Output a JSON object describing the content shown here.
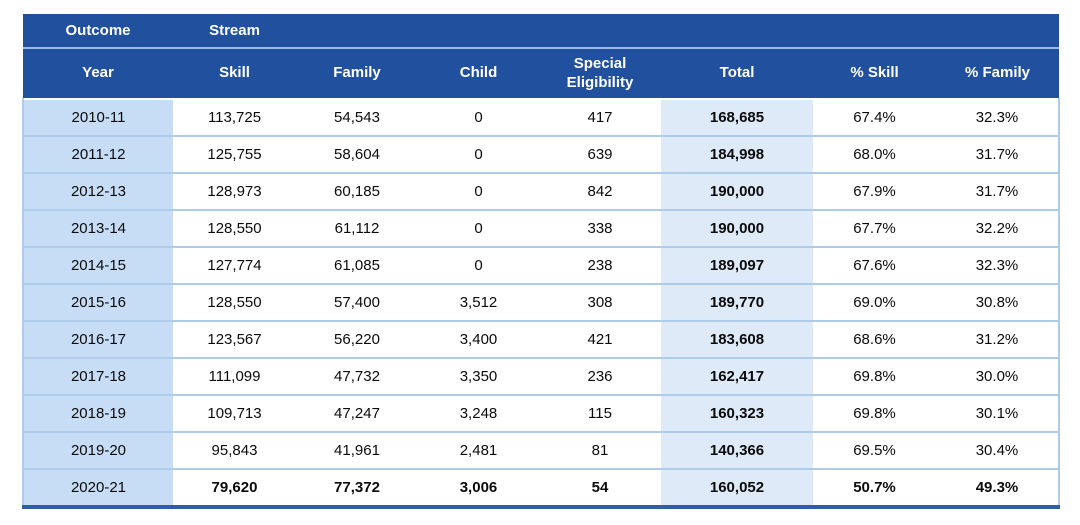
{
  "colors": {
    "header_bg": "#21519E",
    "header_divider": "#9CB9E2",
    "year_column_bg": "#C7DCF5",
    "total_column_bg": "#DEEAF7",
    "row_border": "#AECBEA",
    "bottom_border": "#2E5EA6",
    "header_text": "#FFFFFF",
    "cell_text": "#0B0B0B"
  },
  "table": {
    "group_header": {
      "outcome": "Outcome",
      "stream": "Stream"
    },
    "columns": [
      {
        "label": "Year"
      },
      {
        "label": "Skill"
      },
      {
        "label": "Family"
      },
      {
        "label": "Child"
      },
      {
        "label": "Special\nEligibility"
      },
      {
        "label": "Total"
      },
      {
        "label": "% Skill"
      },
      {
        "label": "% Family"
      }
    ],
    "rows": [
      {
        "year": "2010-11",
        "values": [
          "113,725",
          "54,543",
          "0",
          "417",
          "168,685",
          "67.4%",
          "32.3%"
        ],
        "bold": false
      },
      {
        "year": "2011-12",
        "values": [
          "125,755",
          "58,604",
          "0",
          "639",
          "184,998",
          "68.0%",
          "31.7%"
        ],
        "bold": false
      },
      {
        "year": "2012-13",
        "values": [
          "128,973",
          "60,185",
          "0",
          "842",
          "190,000",
          "67.9%",
          "31.7%"
        ],
        "bold": false
      },
      {
        "year": "2013-14",
        "values": [
          "128,550",
          "61,112",
          "0",
          "338",
          "190,000",
          "67.7%",
          "32.2%"
        ],
        "bold": false
      },
      {
        "year": "2014-15",
        "values": [
          "127,774",
          "61,085",
          "0",
          "238",
          "189,097",
          "67.6%",
          "32.3%"
        ],
        "bold": false
      },
      {
        "year": "2015-16",
        "values": [
          "128,550",
          "57,400",
          "3,512",
          "308",
          "189,770",
          "69.0%",
          "30.8%"
        ],
        "bold": false
      },
      {
        "year": "2016-17",
        "values": [
          "123,567",
          "56,220",
          "3,400",
          "421",
          "183,608",
          "68.6%",
          "31.2%"
        ],
        "bold": false
      },
      {
        "year": "2017-18",
        "values": [
          "111,099",
          "47,732",
          "3,350",
          "236",
          "162,417",
          "69.8%",
          "30.0%"
        ],
        "bold": false
      },
      {
        "year": "2018-19",
        "values": [
          "109,713",
          "47,247",
          "3,248",
          "115",
          "160,323",
          "69.8%",
          "30.1%"
        ],
        "bold": false
      },
      {
        "year": "2019-20",
        "values": [
          "95,843",
          "41,961",
          "2,481",
          "81",
          "140,366",
          "69.5%",
          "30.4%"
        ],
        "bold": false
      },
      {
        "year": "2020-21",
        "values": [
          "79,620",
          "77,372",
          "3,006",
          "54",
          "160,052",
          "50.7%",
          "49.3%"
        ],
        "bold": true
      }
    ]
  },
  "chart_data": {
    "type": "table",
    "title": "",
    "group_headers": {
      "Outcome": [
        "Year"
      ],
      "Stream": [
        "Skill",
        "Family",
        "Child",
        "Special Eligibility"
      ]
    },
    "columns": [
      "Year",
      "Skill",
      "Family",
      "Child",
      "Special Eligibility",
      "Total",
      "% Skill",
      "% Family"
    ],
    "rows": [
      [
        "2010-11",
        113725,
        54543,
        0,
        417,
        168685,
        "67.4%",
        "32.3%"
      ],
      [
        "2011-12",
        125755,
        58604,
        0,
        639,
        184998,
        "68.0%",
        "31.7%"
      ],
      [
        "2012-13",
        128973,
        60185,
        0,
        842,
        190000,
        "67.9%",
        "31.7%"
      ],
      [
        "2013-14",
        128550,
        61112,
        0,
        338,
        190000,
        "67.7%",
        "32.2%"
      ],
      [
        "2014-15",
        127774,
        61085,
        0,
        238,
        189097,
        "67.6%",
        "32.3%"
      ],
      [
        "2015-16",
        128550,
        57400,
        3512,
        308,
        189770,
        "69.0%",
        "30.8%"
      ],
      [
        "2016-17",
        123567,
        56220,
        3400,
        421,
        183608,
        "68.6%",
        "31.2%"
      ],
      [
        "2017-18",
        111099,
        47732,
        3350,
        236,
        162417,
        "69.8%",
        "30.0%"
      ],
      [
        "2018-19",
        109713,
        47247,
        3248,
        115,
        160323,
        "69.8%",
        "30.1%"
      ],
      [
        "2019-20",
        95843,
        41961,
        2481,
        81,
        140366,
        "69.5%",
        "30.4%"
      ],
      [
        "2020-21",
        79620,
        77372,
        3006,
        54,
        160052,
        "50.7%",
        "49.3%"
      ]
    ]
  }
}
